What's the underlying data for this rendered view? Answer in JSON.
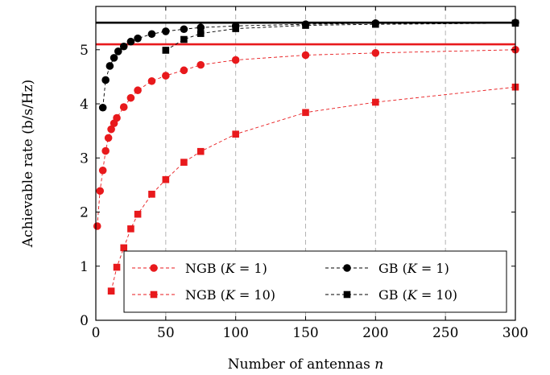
{
  "chart_data": {
    "type": "line",
    "xlabel": "Number of antennas n",
    "ylabel": "Achievable rate (b/s/Hz)",
    "xlim": [
      0,
      300
    ],
    "ylim": [
      0,
      5.8
    ],
    "xticks": [
      0,
      50,
      100,
      150,
      200,
      250,
      300
    ],
    "yticks": [
      0,
      1,
      2,
      3,
      4,
      5
    ],
    "xgrid": true,
    "ygrid": false,
    "legend_placement": "bottom-right",
    "reference_lines": [
      {
        "y": 5.5,
        "color": "#000000"
      },
      {
        "y": 5.1,
        "color": "#e8191c"
      }
    ],
    "series": [
      {
        "name": "NGB (K = 1)",
        "name_parts": {
          "prefix": "NGB (",
          "var": "K",
          "rest": " = 1)"
        },
        "color": "#e8191c",
        "marker": "circle",
        "x": [
          1,
          3,
          5,
          7,
          9,
          11,
          13,
          15,
          20,
          25,
          30,
          40,
          50,
          63,
          75,
          100,
          150,
          200,
          300
        ],
        "y": [
          1.74,
          2.39,
          2.77,
          3.13,
          3.37,
          3.53,
          3.64,
          3.74,
          3.94,
          4.11,
          4.25,
          4.42,
          4.52,
          4.62,
          4.72,
          4.81,
          4.9,
          4.94,
          5.0
        ]
      },
      {
        "name": "NGB (K = 10)",
        "name_parts": {
          "prefix": "NGB (",
          "var": "K",
          "rest": " = 10)"
        },
        "color": "#e8191c",
        "marker": "square",
        "x": [
          11,
          15,
          20,
          25,
          30,
          40,
          50,
          63,
          75,
          100,
          150,
          200,
          300
        ],
        "y": [
          0.54,
          0.98,
          1.34,
          1.69,
          1.96,
          2.33,
          2.6,
          2.92,
          3.12,
          3.44,
          3.84,
          4.03,
          4.31
        ]
      },
      {
        "name": "GB (K = 1)",
        "name_parts": {
          "prefix": "GB (",
          "var": "K",
          "rest": " = 1)"
        },
        "color": "#000000",
        "marker": "circle",
        "x": [
          5,
          7,
          10,
          13,
          16,
          20,
          25,
          30,
          40,
          50,
          63,
          75,
          100,
          150,
          200,
          300
        ],
        "y": [
          3.93,
          4.44,
          4.7,
          4.85,
          4.97,
          5.06,
          5.15,
          5.21,
          5.29,
          5.34,
          5.38,
          5.41,
          5.44,
          5.47,
          5.49,
          5.5
        ]
      },
      {
        "name": "GB (K = 10)",
        "name_parts": {
          "prefix": "GB (",
          "var": "K",
          "rest": " = 10)"
        },
        "color": "#000000",
        "marker": "square",
        "x": [
          50,
          63,
          75,
          100,
          150,
          200,
          300
        ],
        "y": [
          4.99,
          5.19,
          5.3,
          5.39,
          5.45,
          5.47,
          5.49
        ]
      }
    ]
  }
}
